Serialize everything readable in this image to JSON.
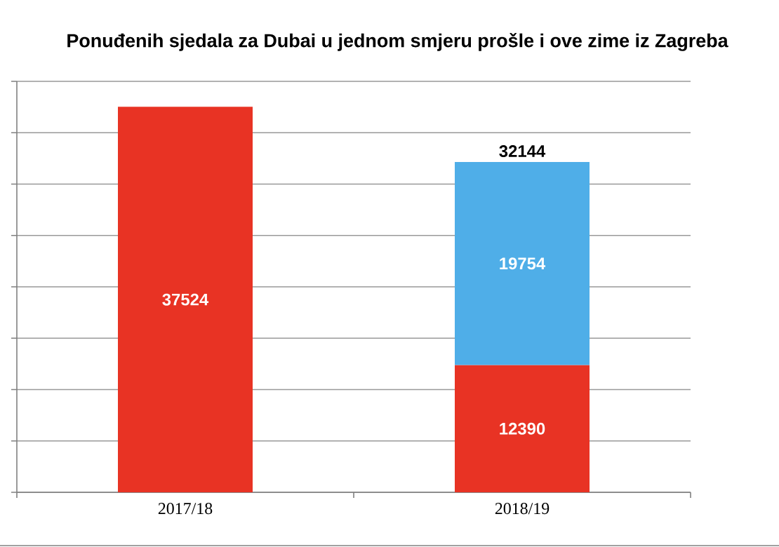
{
  "chart_data": {
    "type": "bar",
    "title": "Ponuđenih sjedala za Dubai u jednom smjeru prošle i ove zime iz Zagreba",
    "categories": [
      "2017/18",
      "2018/19"
    ],
    "series": [
      {
        "color": "#e83324",
        "values": [
          37524,
          12390
        ]
      },
      {
        "color": "#4faee8",
        "values": [
          null,
          19754
        ]
      }
    ],
    "stacked": true,
    "data_labels": true,
    "totals": [
      null,
      "32144"
    ],
    "ylim": [
      0,
      40000
    ],
    "yticks": [
      0,
      5000,
      10000,
      15000,
      20000,
      25000,
      30000,
      35000,
      40000
    ],
    "grid": "y",
    "tick_labels": "x"
  }
}
